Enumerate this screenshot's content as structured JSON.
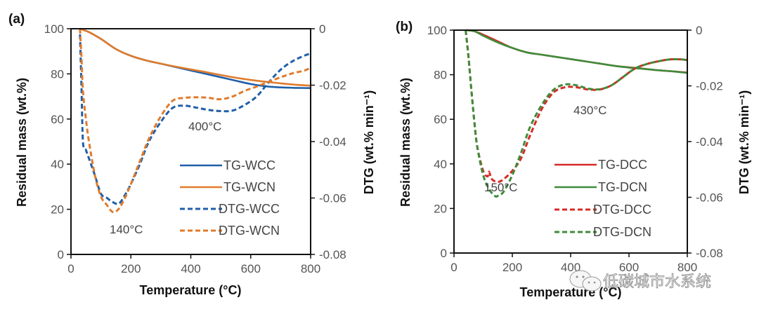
{
  "chart_data": [
    {
      "type": "line",
      "panel_label": "(a)",
      "xlabel": "Temperature (°C)",
      "ylabel": "Residual mass (wt.%)",
      "y2label": "DTG (wt.% min⁻¹)",
      "xlim": [
        0,
        800
      ],
      "ylim": [
        0,
        100
      ],
      "y2lim": [
        -0.08,
        0
      ],
      "xticks": [
        "0",
        "200",
        "400",
        "600",
        "800"
      ],
      "yticks": [
        "0",
        "20",
        "40",
        "60",
        "80",
        "100"
      ],
      "y2ticks": [
        "-0.08",
        "-0.06",
        "-0.04",
        "-0.02",
        "0"
      ],
      "grid": false,
      "legend_position": "center-right",
      "annotations": [
        {
          "text": "140°C",
          "x": 140,
          "y": 10
        },
        {
          "text": "400°C",
          "x": 420,
          "y": 58
        }
      ],
      "series": [
        {
          "name": "TG-WCC",
          "axis": "left",
          "style": "solid",
          "color": "#1f5fa8",
          "x": [
            30,
            60,
            100,
            150,
            200,
            250,
            300,
            350,
            400,
            450,
            500,
            550,
            600,
            650,
            700,
            750,
            800
          ],
          "y": [
            100,
            98.5,
            95.5,
            91,
            88,
            86,
            84.5,
            83,
            81.5,
            80,
            78.5,
            77,
            75.5,
            74.5,
            74,
            73.8,
            73.7
          ]
        },
        {
          "name": "TG-WCN",
          "axis": "left",
          "style": "solid",
          "color": "#e07b2c",
          "x": [
            30,
            60,
            100,
            150,
            200,
            250,
            300,
            350,
            400,
            450,
            500,
            550,
            600,
            650,
            700,
            750,
            800
          ],
          "y": [
            100,
            98.5,
            95.5,
            91,
            88,
            86,
            84.5,
            83.2,
            82,
            80.8,
            79.5,
            78.3,
            77.3,
            76.5,
            75.8,
            75.2,
            74.8
          ]
        },
        {
          "name": "DTG-WCC",
          "axis": "right",
          "style": "dashed",
          "color": "#1f5fa8",
          "x": [
            30,
            35,
            40,
            50,
            60,
            80,
            100,
            120,
            140,
            160,
            180,
            200,
            230,
            260,
            300,
            340,
            380,
            420,
            460,
            500,
            540,
            580,
            620,
            660,
            700,
            740,
            780,
            800
          ],
          "y": [
            -0.002,
            -0.02,
            -0.04,
            -0.043,
            -0.046,
            -0.052,
            -0.0585,
            -0.06,
            -0.0615,
            -0.062,
            -0.059,
            -0.055,
            -0.048,
            -0.04,
            -0.033,
            -0.028,
            -0.0273,
            -0.028,
            -0.0288,
            -0.0292,
            -0.029,
            -0.027,
            -0.024,
            -0.019,
            -0.0145,
            -0.0115,
            -0.0095,
            -0.0088
          ]
        },
        {
          "name": "DTG-WCN",
          "axis": "right",
          "style": "dashed",
          "color": "#e07b2c",
          "x": [
            30,
            35,
            40,
            50,
            60,
            80,
            100,
            120,
            140,
            160,
            180,
            200,
            230,
            260,
            300,
            340,
            380,
            420,
            460,
            500,
            540,
            580,
            620,
            660,
            700,
            740,
            780,
            800
          ],
          "y": [
            0,
            -0.01,
            -0.022,
            -0.032,
            -0.04,
            -0.052,
            -0.0595,
            -0.0625,
            -0.065,
            -0.0638,
            -0.06,
            -0.055,
            -0.047,
            -0.039,
            -0.031,
            -0.0255,
            -0.0245,
            -0.0243,
            -0.0245,
            -0.025,
            -0.024,
            -0.022,
            -0.0205,
            -0.0188,
            -0.0172,
            -0.0158,
            -0.0148,
            -0.0138
          ]
        }
      ]
    },
    {
      "type": "line",
      "panel_label": "(b)",
      "xlabel": "Temperature (°C)",
      "ylabel": "Residual mass (wt.%)",
      "y2label": "DTG (wt.% min⁻¹)",
      "xlim": [
        0,
        800
      ],
      "ylim": [
        0,
        100
      ],
      "y2lim": [
        -0.08,
        0
      ],
      "xticks": [
        "0",
        "200",
        "400",
        "600",
        "800"
      ],
      "yticks": [
        "0",
        "20",
        "40",
        "60",
        "80",
        "100"
      ],
      "y2ticks": [
        "-0.08",
        "-0.06",
        "-0.04",
        "-0.02",
        "0"
      ],
      "grid": false,
      "legend_position": "center-right",
      "annotations": [
        {
          "text": "150°C",
          "x": 150,
          "y": 30
        },
        {
          "text": "430°C",
          "x": 440,
          "y": 64
        }
      ],
      "series": [
        {
          "name": "TG-DCC",
          "axis": "left",
          "style": "solid",
          "color": "#d62b27",
          "x": [
            40,
            70,
            100,
            150,
            200,
            250,
            300,
            350,
            400,
            450,
            500,
            550,
            600,
            650,
            700,
            750,
            800
          ],
          "y": [
            100,
            99.5,
            98,
            95,
            92,
            90,
            89,
            88,
            87,
            86,
            85,
            84,
            83.3,
            82.7,
            82,
            81.5,
            81
          ]
        },
        {
          "name": "TG-DCN",
          "axis": "left",
          "style": "solid",
          "color": "#3e8c3a",
          "x": [
            40,
            70,
            100,
            150,
            200,
            250,
            300,
            350,
            400,
            450,
            500,
            550,
            600,
            650,
            700,
            750,
            800
          ],
          "y": [
            100,
            99.5,
            97.5,
            94.5,
            92,
            90,
            89,
            88,
            87,
            86,
            85,
            84,
            83.2,
            82.6,
            82,
            81.5,
            80.8
          ]
        },
        {
          "name": "DTG-DCC",
          "axis": "right",
          "style": "dashed",
          "color": "#d62b27",
          "x": [
            40,
            50,
            60,
            70,
            80,
            100,
            115,
            120,
            130,
            150,
            170,
            200,
            230,
            260,
            300,
            340,
            380,
            420,
            460,
            500,
            540,
            580,
            620,
            660,
            700,
            740,
            780,
            800
          ],
          "y": [
            0,
            -0.01,
            -0.022,
            -0.033,
            -0.042,
            -0.0505,
            -0.0525,
            -0.0508,
            -0.0535,
            -0.0545,
            -0.0535,
            -0.0505,
            -0.046,
            -0.038,
            -0.0285,
            -0.0225,
            -0.0205,
            -0.0205,
            -0.0213,
            -0.0213,
            -0.0198,
            -0.0168,
            -0.0138,
            -0.0122,
            -0.0112,
            -0.0105,
            -0.0105,
            -0.0108
          ]
        },
        {
          "name": "DTG-DCN",
          "axis": "right",
          "style": "dashed",
          "color": "#3e8c3a",
          "x": [
            40,
            50,
            60,
            70,
            80,
            100,
            120,
            140,
            150,
            170,
            200,
            230,
            260,
            300,
            340,
            380,
            420,
            460,
            500,
            540,
            580,
            620,
            660,
            700,
            740,
            780,
            800
          ],
          "y": [
            0,
            -0.01,
            -0.022,
            -0.033,
            -0.042,
            -0.052,
            -0.057,
            -0.0595,
            -0.0595,
            -0.058,
            -0.052,
            -0.044,
            -0.035,
            -0.027,
            -0.0215,
            -0.0195,
            -0.0198,
            -0.021,
            -0.0212,
            -0.0198,
            -0.0168,
            -0.0138,
            -0.0122,
            -0.0112,
            -0.0105,
            -0.0105,
            -0.0108
          ]
        }
      ]
    }
  ],
  "watermark": "低碳城市水系统"
}
